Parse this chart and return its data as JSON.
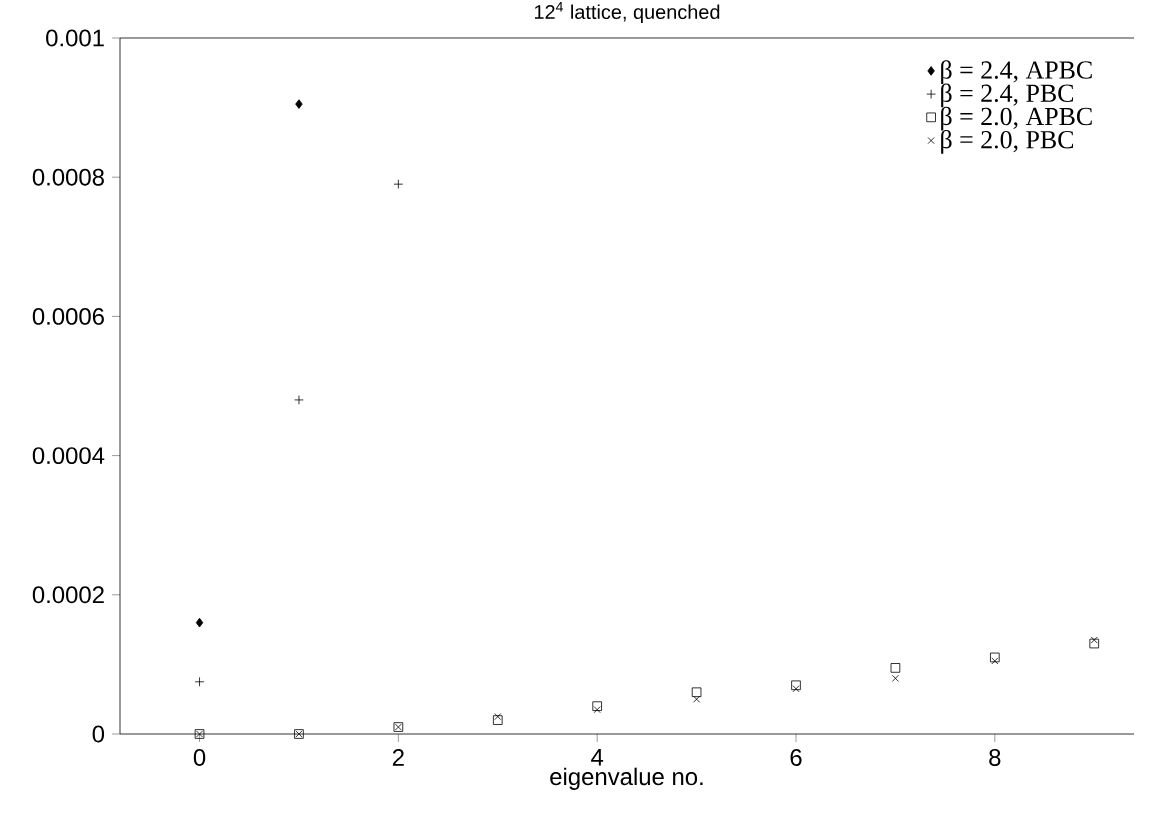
{
  "chart_data": {
    "type": "scatter",
    "title": "12$^{4}$ lattice, quenched",
    "xlabel": "eigenvalue no.",
    "xlim": [
      -0.8,
      9.4
    ],
    "xticks": [
      0,
      2,
      4,
      6,
      8
    ],
    "ylim": [
      0,
      0.001
    ],
    "yticks": [
      0,
      0.0002,
      0.0004,
      0.0006,
      0.0008,
      0.001
    ],
    "legend": "top right",
    "series": [
      {
        "name": "β = 2.4, APBC",
        "color": "#000000",
        "marker": "diamond",
        "x": [
          0,
          1
        ],
        "values": [
          0.00016,
          0.000905
        ]
      },
      {
        "name": "β = 2.4, PBC",
        "color": "#000000",
        "marker": "cross",
        "x": [
          0,
          1,
          2
        ],
        "values": [
          7.5e-05,
          0.00048,
          0.00079
        ]
      },
      {
        "name": "β = 2.0, APBC",
        "color": "#000000",
        "x": [
          0,
          1,
          2,
          3,
          4,
          5,
          6,
          7,
          8,
          9
        ],
        "values": [
          0,
          0,
          1e-05,
          2e-05,
          4e-05,
          6e-05,
          7e-05,
          9.5e-05,
          0.00011,
          0.00013
        ]
      },
      {
        "name": "β = 2.0, PBC",
        "color": "#000000",
        "x": [
          0,
          1,
          2,
          3,
          4,
          5,
          6,
          7,
          8,
          9
        ],
        "values": [
          0,
          0,
          1e-05,
          2.5e-05,
          3.5e-05,
          5e-05,
          6.5e-05,
          8e-05,
          0.000105,
          0.000135
        ]
      }
    ]
  }
}
